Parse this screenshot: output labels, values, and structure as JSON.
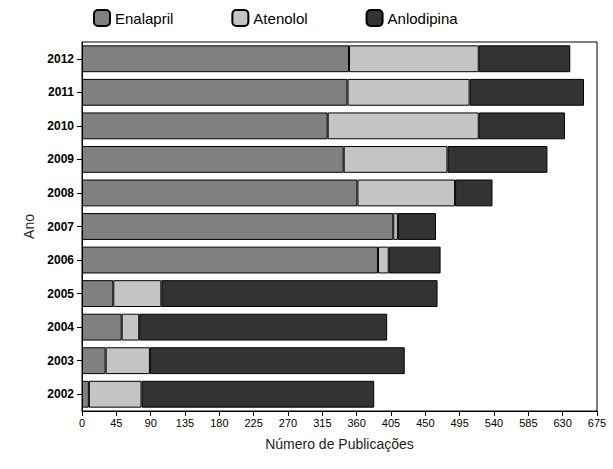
{
  "chart_data": {
    "type": "bar",
    "orientation": "horizontal",
    "stacked": true,
    "grid": false,
    "legend": "top",
    "x_label": "Número de Publicações",
    "y_label": "Ano",
    "categories": [
      "2002",
      "2003",
      "2004",
      "2005",
      "2006",
      "2007",
      "2008",
      "2009",
      "2010",
      "2011",
      "2012"
    ],
    "series": [
      {
        "name": "Enalapril",
        "color": "#808080",
        "values": [
          9,
          31,
          52,
          41,
          388,
          408,
          361,
          343,
          322,
          348,
          350
        ]
      },
      {
        "name": "Atenolol",
        "color": "#c4c4c4",
        "values": [
          69,
          58,
          23,
          63,
          14,
          6,
          128,
          136,
          198,
          160,
          170
        ]
      },
      {
        "name": "Anlodipina",
        "color": "#333333",
        "values": [
          305,
          334,
          325,
          362,
          68,
          50,
          49,
          131,
          113,
          150,
          120
        ]
      }
    ],
    "xlim": [
      0,
      675
    ],
    "xticks": [
      0,
      45,
      90,
      135,
      180,
      225,
      270,
      315,
      360,
      405,
      450,
      495,
      540,
      585,
      630,
      675
    ]
  }
}
